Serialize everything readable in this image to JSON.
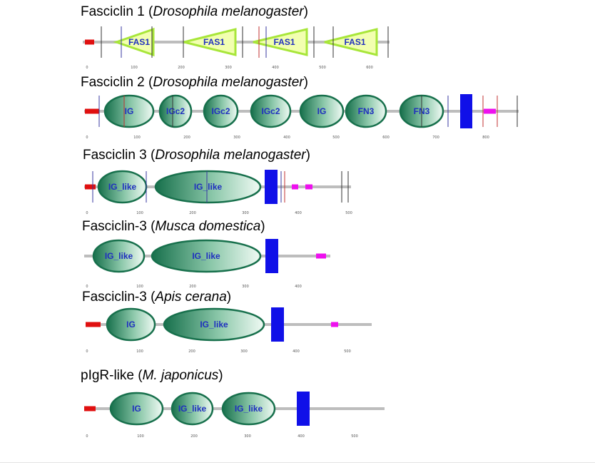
{
  "proteins": [
    {
      "name": "Fasciclin 1",
      "species": "Drosophila melanogaster",
      "tick_labels": [
        "0",
        "100",
        "200",
        "300",
        "400",
        "500",
        "600"
      ],
      "domains": [
        "FAS1",
        "FAS1",
        "FAS1",
        "FAS1"
      ]
    },
    {
      "name": "Fasciclin 2",
      "species": "Drosophila melanogaster",
      "tick_labels": [
        "0",
        "100",
        "200",
        "300",
        "400",
        "500",
        "600",
        "700",
        "800"
      ],
      "domains": [
        "IG",
        "IGc2",
        "IGc2",
        "IGc2",
        "IG",
        "FN3",
        "FN3"
      ]
    },
    {
      "name": "Fasciclin 3",
      "species": "Drosophila melanogaster",
      "tick_labels": [
        "0",
        "100",
        "200",
        "300",
        "400",
        "500"
      ],
      "domains": [
        "IG_like",
        "IG_like"
      ]
    },
    {
      "name": "Fasciclin-3",
      "species": "Musca domestica",
      "tick_labels": [
        "0",
        "100",
        "200",
        "300",
        "400"
      ],
      "domains": [
        "IG_like",
        "IG_like"
      ]
    },
    {
      "name": "Fasciclin-3",
      "species": "Apis cerana",
      "tick_labels": [
        "0",
        "100",
        "200",
        "300",
        "400",
        "500"
      ],
      "domains": [
        "IG",
        "IG_like"
      ]
    },
    {
      "name": "pIgR-like",
      "species": "M. japonicus",
      "tick_labels": [
        "0",
        "100",
        "200",
        "300",
        "400",
        "500"
      ],
      "domains": [
        "IG",
        "IG_like",
        "IG_like"
      ]
    }
  ],
  "colors": {
    "backbone": "#bdbdbd",
    "signal_peptide": "#e01010",
    "transmembrane": "#1010e8",
    "low_complexity": "#ee10ee",
    "fas1_fill": "#f2ffb0",
    "fas1_stroke": "#a8e63a",
    "ig_dark": "#17704c",
    "ig_light": "#e9f6ef",
    "domain_label": "#1f2fbf"
  }
}
